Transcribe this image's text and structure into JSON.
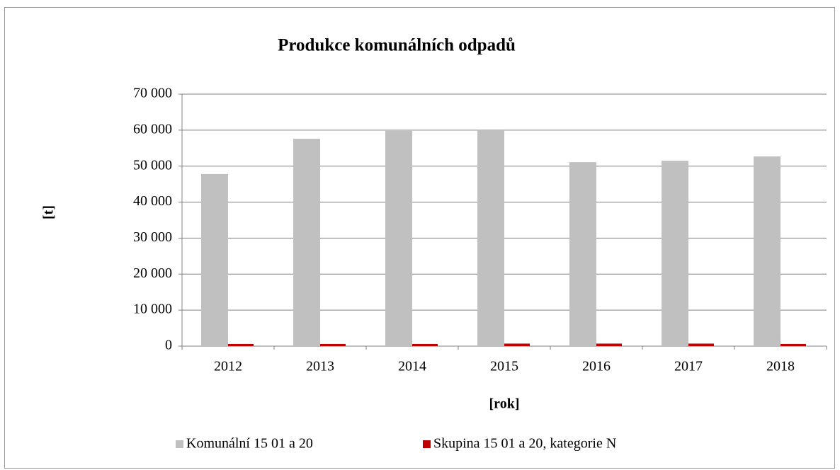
{
  "chart_data": {
    "type": "bar",
    "title": "Produkce komunálních odpadů",
    "xlabel": "[rok]",
    "ylabel": "[t]",
    "categories": [
      "2012",
      "2013",
      "2014",
      "2015",
      "2016",
      "2017",
      "2018"
    ],
    "series": [
      {
        "name": "Komunální 15 01 a 20",
        "color": "#c0c0c0",
        "values": [
          47800,
          57600,
          59800,
          60200,
          51100,
          51500,
          52700
        ]
      },
      {
        "name": "Skupina 15 01 a 20, kategorie N",
        "color": "#c00000",
        "values": [
          600,
          600,
          600,
          700,
          700,
          700,
          600
        ]
      }
    ],
    "ylim": [
      0,
      70000
    ],
    "yticks": [
      0,
      {
        "value": 10000,
        "label": "10 000"
      },
      {
        "value": 20000,
        "label": "20 000"
      },
      {
        "value": 30000,
        "label": "30 000"
      },
      {
        "value": 40000,
        "label": "40 000"
      },
      {
        "value": 50000,
        "label": "50 000"
      },
      {
        "value": 60000,
        "label": "60 000"
      },
      {
        "value": 70000,
        "label": "70 000"
      }
    ],
    "grid": true,
    "legend": "bottom"
  }
}
